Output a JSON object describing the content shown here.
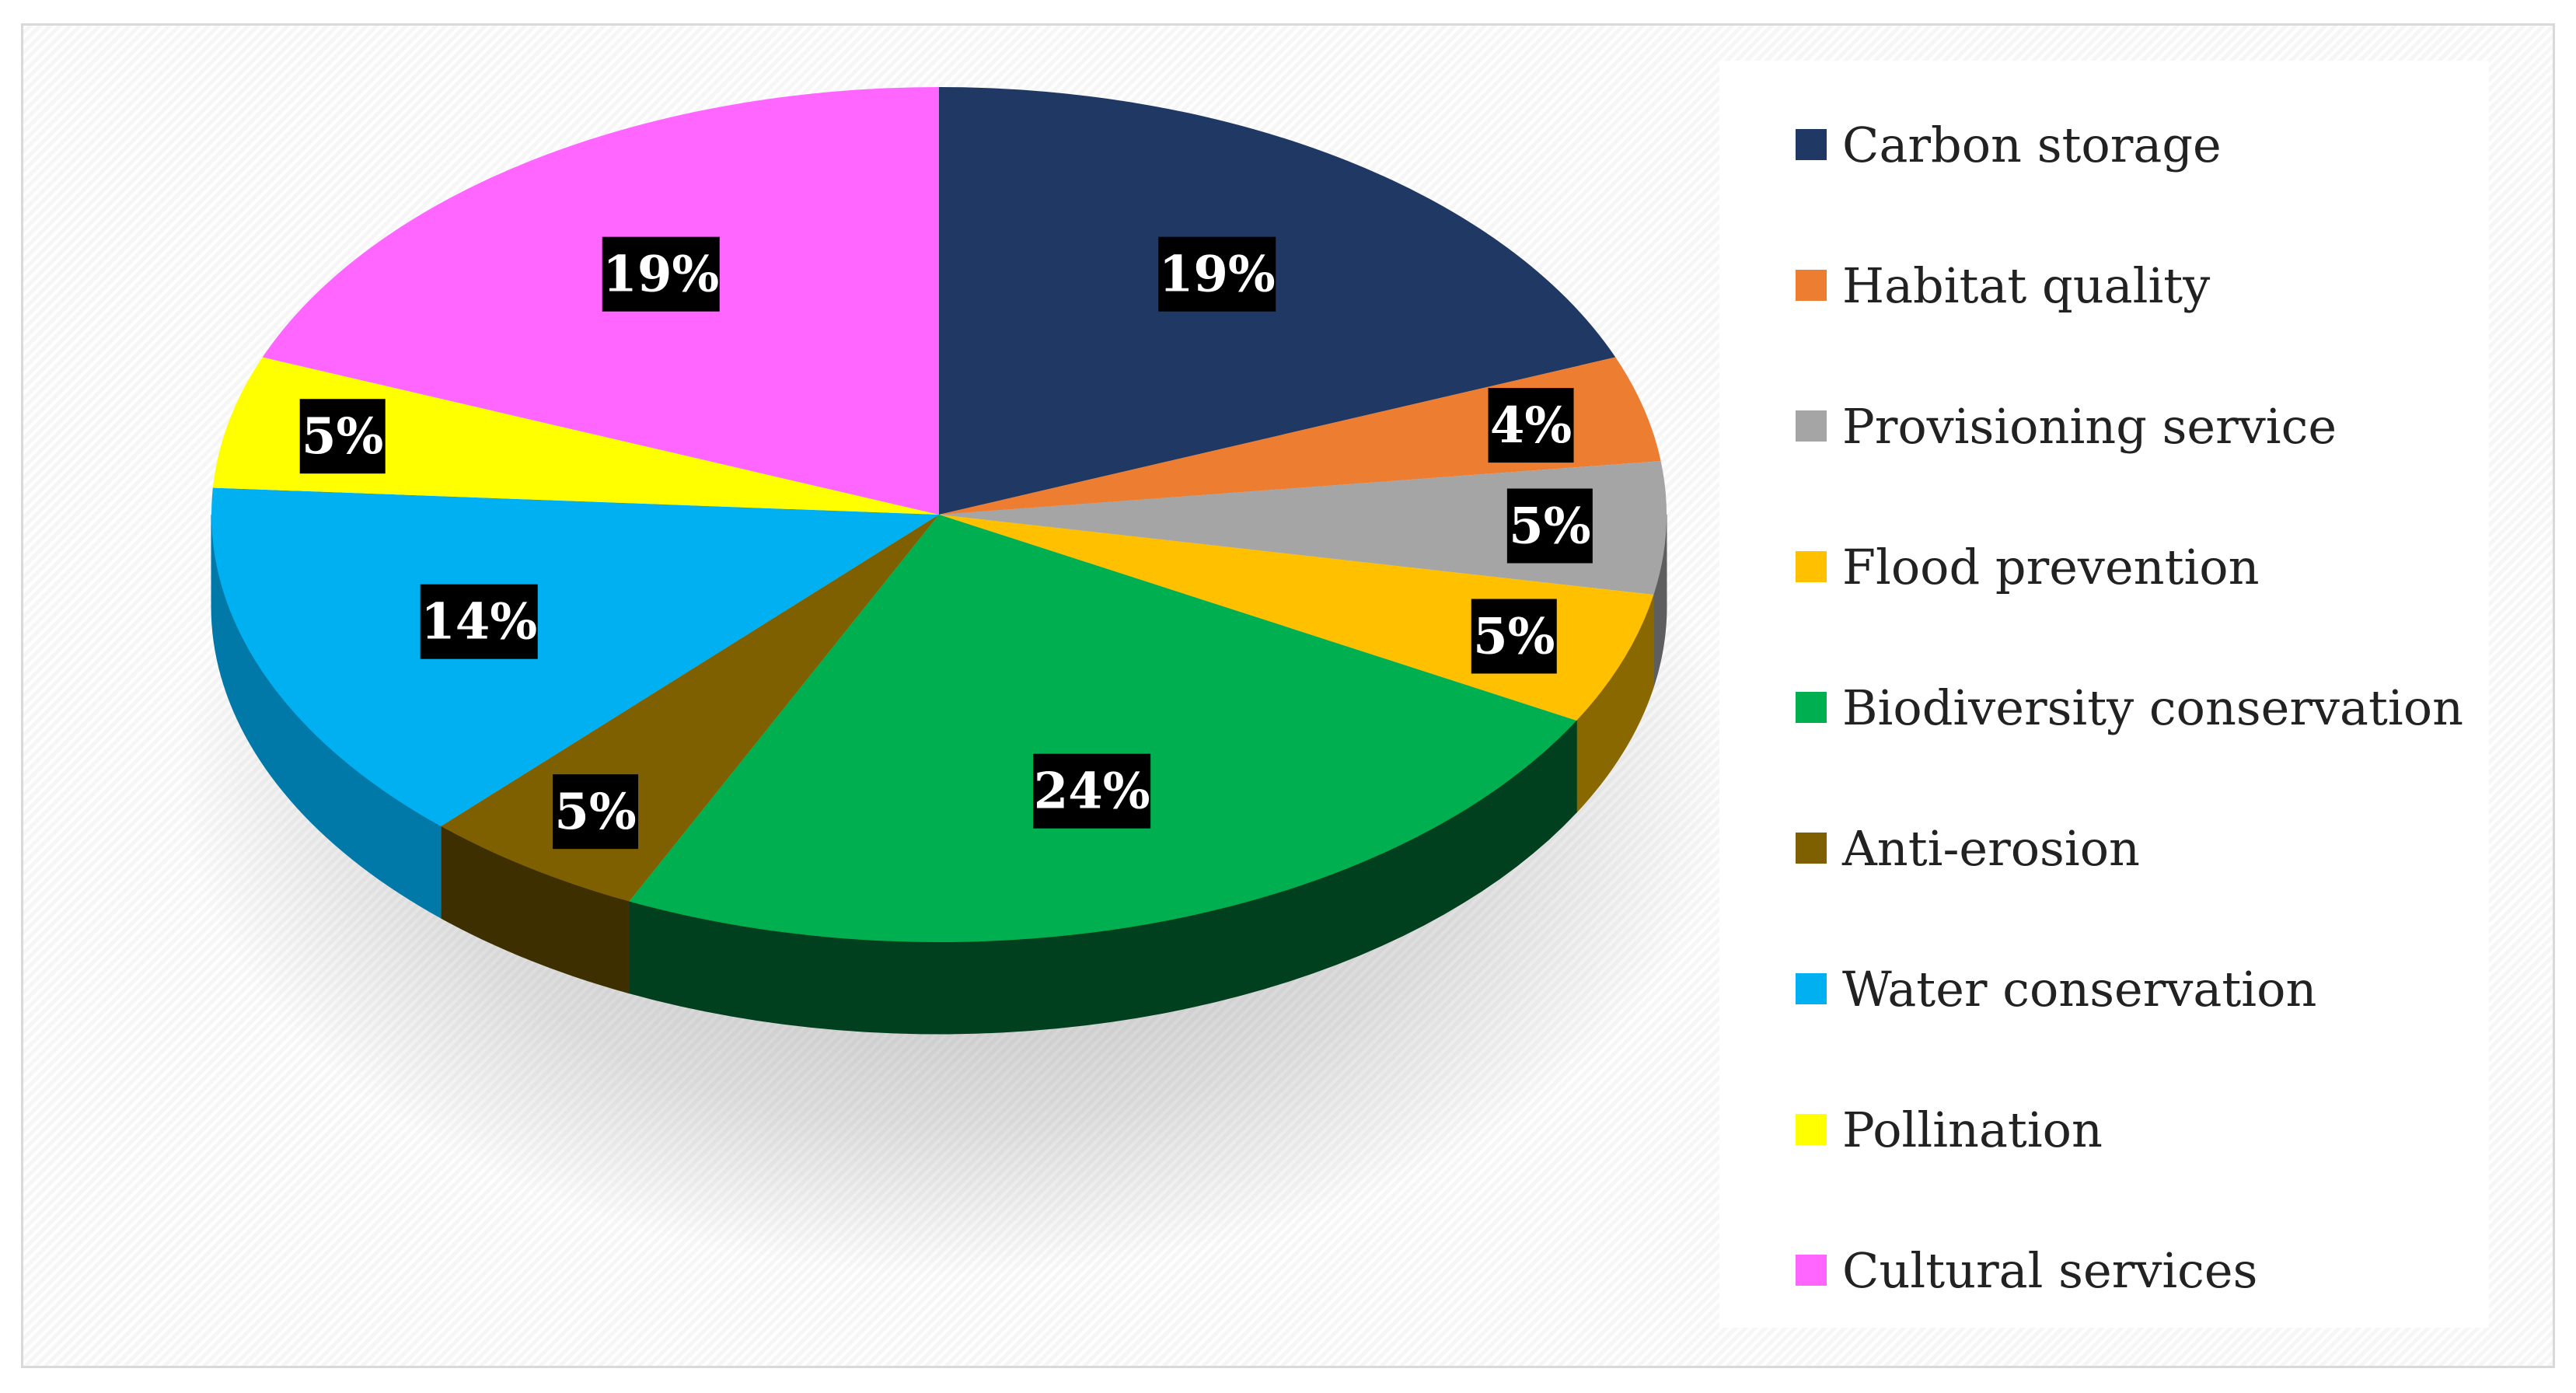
{
  "chart_data": {
    "type": "pie",
    "categories": [
      "Carbon storage",
      "Habitat quality",
      "Provisioning service",
      "Flood prevention",
      "Biodiversity conservation",
      "Anti-erosion",
      "Water conservation",
      "Pollination",
      "Cultural services"
    ],
    "values": [
      19,
      4,
      5,
      5,
      24,
      5,
      14,
      5,
      19
    ],
    "labels": [
      "19%",
      "4%",
      "5%",
      "5%",
      "24%",
      "5%",
      "14%",
      "5%",
      "19%"
    ],
    "colors": [
      "#203864",
      "#ed7d31",
      "#a5a5a5",
      "#ffc000",
      "#00b050",
      "#7f6000",
      "#00b0f0",
      "#ffff00",
      "#ff66ff"
    ],
    "side_colors": [
      "#101c32",
      "#8a4313",
      "#5e5e5e",
      "#8a6800",
      "#00401f",
      "#3e2f00",
      "#0079a8",
      "#8a8a00",
      "#8a2f8a"
    ],
    "legend_position": "right",
    "style": "3d-tilted",
    "label_style": "white bold on black boxes"
  }
}
